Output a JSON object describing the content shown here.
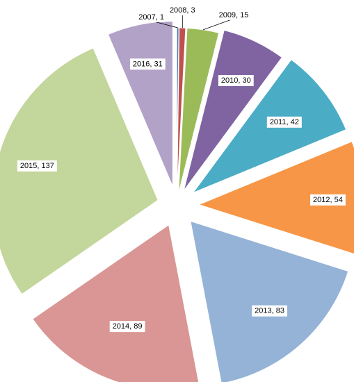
{
  "chart_data": {
    "type": "pie",
    "title": "",
    "exploded": true,
    "start_angle_deg": 0,
    "direction": "clockwise",
    "slices": [
      {
        "category": "2007",
        "value": 1,
        "label": "2007, 1",
        "color": "#4f81bd"
      },
      {
        "category": "2008",
        "value": 3,
        "label": "2008, 3",
        "color": "#c0504d"
      },
      {
        "category": "2009",
        "value": 15,
        "label": "2009, 15",
        "color": "#9bbb59"
      },
      {
        "category": "2010",
        "value": 30,
        "label": "2010, 30",
        "color": "#8064a2"
      },
      {
        "category": "2011",
        "value": 42,
        "label": "2011, 42",
        "color": "#4bacc6"
      },
      {
        "category": "2012",
        "value": 54,
        "label": "2012, 54",
        "color": "#f79646"
      },
      {
        "category": "2013",
        "value": 83,
        "label": "2013, 83",
        "color": "#95b3d7"
      },
      {
        "category": "2014",
        "value": 89,
        "label": "2014, 89",
        "color": "#d99694"
      },
      {
        "category": "2015",
        "value": 137,
        "label": "2015, 137",
        "color": "#c3d69b"
      },
      {
        "category": "2016",
        "value": 31,
        "label": "2016, 31",
        "color": "#b2a2c7"
      }
    ],
    "legend": "none"
  }
}
